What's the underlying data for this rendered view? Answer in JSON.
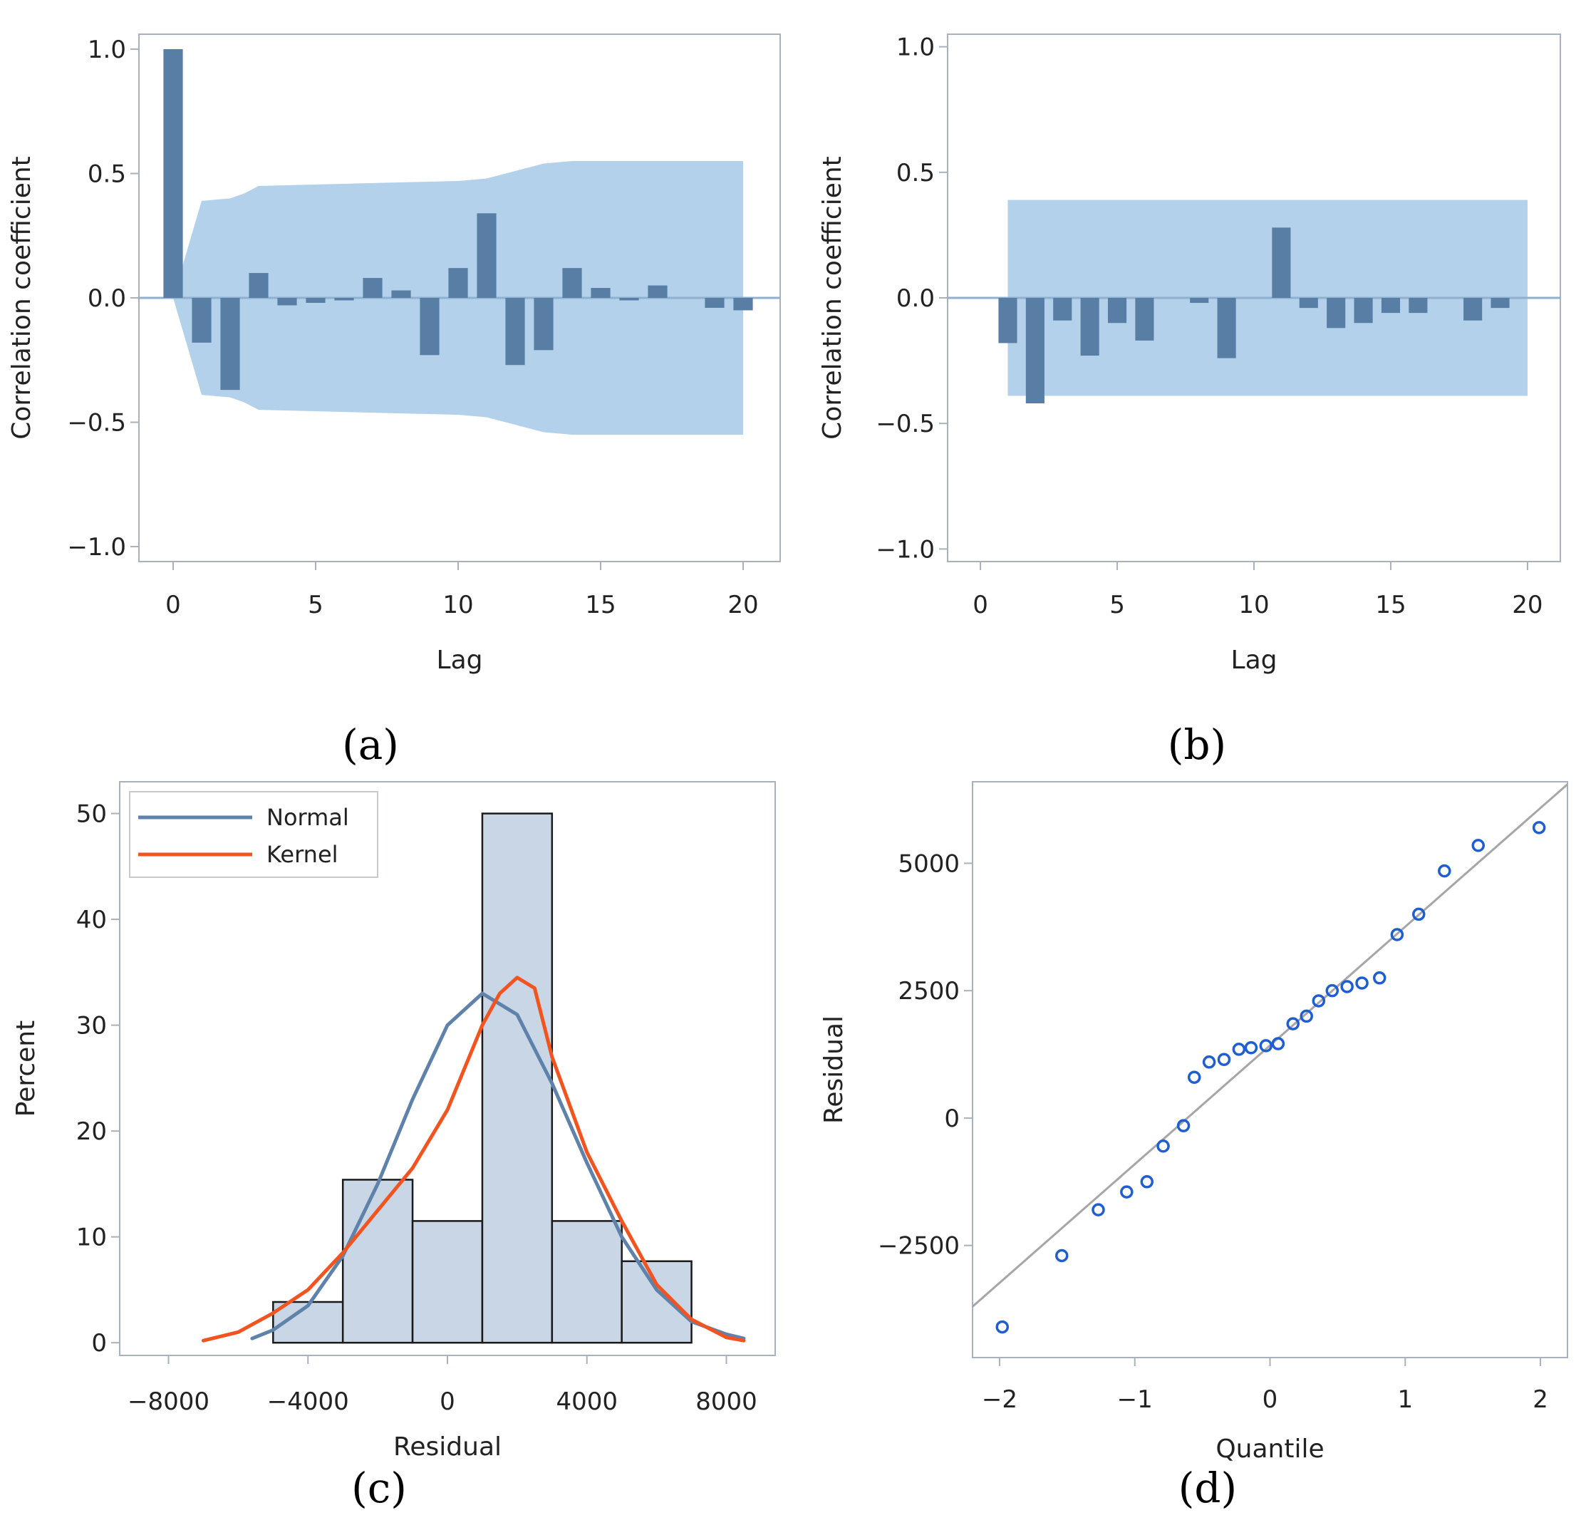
{
  "colors": {
    "bar": "#587ea5",
    "confidence_band": "#b3d1ea",
    "zero_line": "#8fb0cf",
    "frame": "#a7b2bc",
    "hist_fill": "#c9d6e6",
    "normal_curve": "#5f82ab",
    "kernel_curve": "#f2541f",
    "qq_points": "#1f5ed0",
    "ref_line": "#a6a6a6"
  },
  "panels": {
    "a": {
      "label": "(a)"
    },
    "b": {
      "label": "(b)"
    },
    "c": {
      "label": "(c)"
    },
    "d": {
      "label": "(d)"
    }
  },
  "chart_data": [
    {
      "panel": "a",
      "type": "bar",
      "xlabel": "Lag",
      "ylabel": "Correlation coefficient",
      "xlim": [
        -1.2,
        21.3
      ],
      "ylim": [
        -1.06,
        1.06
      ],
      "xticks": [
        0,
        5,
        10,
        15,
        20
      ],
      "yticks": [
        1.0,
        0.5,
        0.0,
        -0.5,
        -1.0
      ],
      "ytick_labels": [
        "1.0",
        "0.5",
        "0.0",
        "−0.5",
        "−1.0"
      ],
      "lags": [
        0,
        1,
        2,
        3,
        4,
        5,
        6,
        7,
        8,
        9,
        10,
        11,
        12,
        13,
        14,
        15,
        16,
        17,
        18,
        19,
        20
      ],
      "values": [
        1.0,
        -0.18,
        -0.37,
        0.1,
        -0.03,
        -0.02,
        -0.01,
        0.08,
        0.03,
        -0.23,
        0.12,
        0.34,
        -0.27,
        -0.21,
        0.12,
        0.04,
        -0.01,
        0.05,
        0.0,
        -0.04,
        -0.05
      ],
      "confidence_band": {
        "lags": [
          0,
          1,
          2,
          2.5,
          3,
          10,
          11,
          12,
          13,
          14,
          20
        ],
        "upper": [
          0.0,
          0.39,
          0.4,
          0.42,
          0.45,
          0.47,
          0.48,
          0.51,
          0.54,
          0.55,
          0.55
        ]
      }
    },
    {
      "panel": "b",
      "type": "bar",
      "xlabel": "Lag",
      "ylabel": "Correlation coefficient",
      "xlim": [
        -1.2,
        21.2
      ],
      "ylim": [
        -1.05,
        1.05
      ],
      "xticks": [
        0,
        5,
        10,
        15,
        20
      ],
      "yticks": [
        1.0,
        0.5,
        0.0,
        -0.5,
        -1.0
      ],
      "ytick_labels": [
        "1.0",
        "0.5",
        "0.0",
        "−0.5",
        "−1.0"
      ],
      "lags": [
        1,
        2,
        3,
        4,
        5,
        6,
        7,
        8,
        9,
        10,
        11,
        12,
        13,
        14,
        15,
        16,
        17,
        18,
        19,
        20
      ],
      "values": [
        -0.18,
        -0.42,
        -0.09,
        -0.23,
        -0.1,
        -0.17,
        0.0,
        -0.02,
        -0.24,
        0.0,
        0.28,
        -0.04,
        -0.12,
        -0.1,
        -0.06,
        -0.06,
        0.0,
        -0.09,
        -0.04,
        0.0
      ],
      "confidence_band": {
        "lag_range": [
          1,
          20
        ],
        "upper": 0.39,
        "lower": -0.39
      }
    },
    {
      "panel": "c",
      "type": "histogram",
      "xlabel": "Residual",
      "ylabel": "Percent",
      "xlim": [
        -9400,
        9400
      ],
      "ylim": [
        -1.2,
        53
      ],
      "xticks": [
        -8000,
        -4000,
        0,
        4000,
        8000
      ],
      "xtick_labels": [
        "−8000",
        "−4000",
        "0",
        "4000",
        "8000"
      ],
      "yticks": [
        0,
        10,
        20,
        30,
        40,
        50
      ],
      "bins": [
        {
          "from": -5000,
          "to": -3000,
          "percent": 3.85
        },
        {
          "from": -3000,
          "to": -1000,
          "percent": 15.4
        },
        {
          "from": -1000,
          "to": 1000,
          "percent": 11.5
        },
        {
          "from": 1000,
          "to": 3000,
          "percent": 50.0
        },
        {
          "from": 3000,
          "to": 5000,
          "percent": 11.5
        },
        {
          "from": 5000,
          "to": 7000,
          "percent": 7.7
        }
      ],
      "legend": {
        "position": "top-left",
        "entries": [
          "Normal",
          "Kernel"
        ]
      },
      "series": [
        {
          "name": "Normal",
          "x": [
            -5600,
            -5000,
            -4000,
            -3000,
            -2000,
            -1000,
            0,
            1000,
            2000,
            3000,
            4000,
            5000,
            6000,
            7000,
            8000,
            8500
          ],
          "y": [
            0.4,
            1.2,
            3.5,
            8.2,
            15.0,
            23.0,
            30.0,
            33.0,
            31.0,
            24.5,
            17.0,
            10.0,
            5.0,
            2.0,
            0.8,
            0.4
          ]
        },
        {
          "name": "Kernel",
          "x": [
            -7000,
            -6000,
            -5000,
            -4000,
            -3000,
            -2000,
            -1000,
            0,
            1000,
            1500,
            2000,
            2500,
            3000,
            4000,
            5000,
            6000,
            7000,
            8000,
            8500
          ],
          "y": [
            0.2,
            1.0,
            2.8,
            5.0,
            8.5,
            12.5,
            16.5,
            22.0,
            30.0,
            33.0,
            34.5,
            33.5,
            27.0,
            18.0,
            11.5,
            5.5,
            2.2,
            0.5,
            0.2
          ]
        }
      ]
    },
    {
      "panel": "d",
      "type": "scatter",
      "xlabel": "Quantile",
      "ylabel": "Residual",
      "xlim": [
        -2.2,
        2.2
      ],
      "ylim": [
        -4700,
        6600
      ],
      "xticks": [
        -2,
        -1,
        0,
        1,
        2
      ],
      "xtick_labels": [
        "−2",
        "−1",
        "0",
        "1",
        "2"
      ],
      "yticks": [
        5000,
        2500,
        0,
        -2500
      ],
      "ytick_labels": [
        "5000",
        "2500",
        "0",
        "−2500"
      ],
      "points": [
        [
          -1.98,
          -4100
        ],
        [
          -1.54,
          -2700
        ],
        [
          -1.27,
          -1800
        ],
        [
          -1.06,
          -1450
        ],
        [
          -0.91,
          -1250
        ],
        [
          -0.79,
          -550
        ],
        [
          -0.64,
          -150
        ],
        [
          -0.56,
          800
        ],
        [
          -0.45,
          1100
        ],
        [
          -0.34,
          1150
        ],
        [
          -0.23,
          1350
        ],
        [
          -0.14,
          1380
        ],
        [
          -0.03,
          1420
        ],
        [
          0.06,
          1460
        ],
        [
          0.17,
          1850
        ],
        [
          0.27,
          2000
        ],
        [
          0.36,
          2300
        ],
        [
          0.46,
          2500
        ],
        [
          0.57,
          2580
        ],
        [
          0.68,
          2650
        ],
        [
          0.81,
          2750
        ],
        [
          0.94,
          3600
        ],
        [
          1.1,
          4000
        ],
        [
          1.29,
          4850
        ],
        [
          1.54,
          5350
        ],
        [
          1.99,
          5700
        ]
      ],
      "reference_line": {
        "x": [
          -2.2,
          2.2
        ],
        "y": [
          -3700,
          6550
        ]
      }
    }
  ]
}
